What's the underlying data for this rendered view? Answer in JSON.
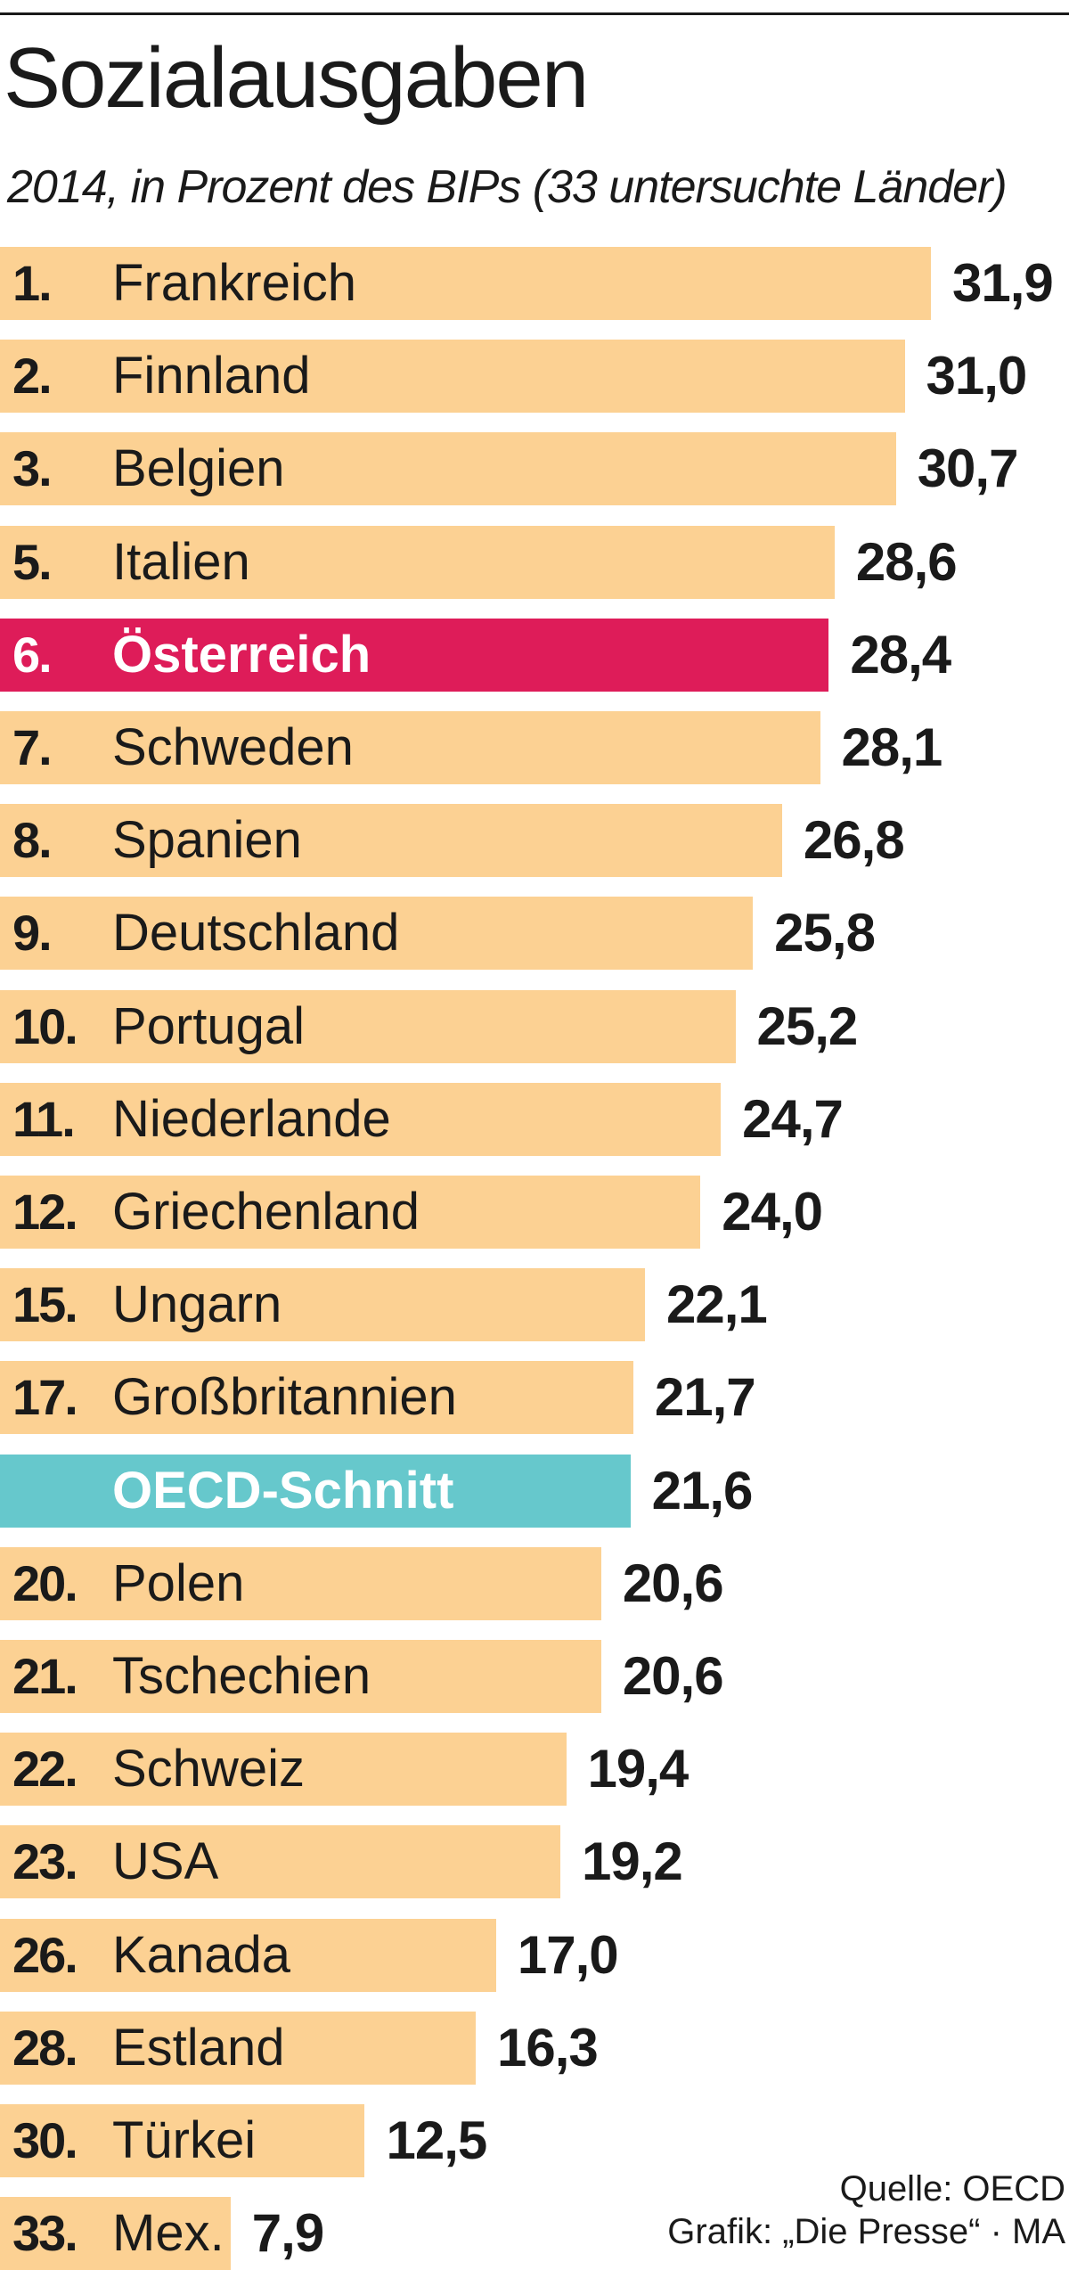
{
  "colors": {
    "bar": "#fcd193",
    "highlight": "#de1c59",
    "average": "#66c8cc",
    "text": "#1a1a1a"
  },
  "chart_data": {
    "type": "bar",
    "orientation": "horizontal",
    "title": "Sozialausgaben",
    "subtitle": "2014, in Prozent des BIPs (33 untersuchte Länder)",
    "xlim": [
      0,
      33.5
    ],
    "grid": false,
    "rows": [
      {
        "rank": "1.",
        "country": "Frankreich",
        "value": 31.9,
        "label": "31,9",
        "style": "normal"
      },
      {
        "rank": "2.",
        "country": "Finnland",
        "value": 31.0,
        "label": "31,0",
        "style": "normal"
      },
      {
        "rank": "3.",
        "country": "Belgien",
        "value": 30.7,
        "label": "30,7",
        "style": "normal"
      },
      {
        "rank": "5.",
        "country": "Italien",
        "value": 28.6,
        "label": "28,6",
        "style": "normal"
      },
      {
        "rank": "6.",
        "country": "Österreich",
        "value": 28.4,
        "label": "28,4",
        "style": "highlight"
      },
      {
        "rank": "7.",
        "country": "Schweden",
        "value": 28.1,
        "label": "28,1",
        "style": "normal"
      },
      {
        "rank": "8.",
        "country": "Spanien",
        "value": 26.8,
        "label": "26,8",
        "style": "normal"
      },
      {
        "rank": "9.",
        "country": "Deutschland",
        "value": 25.8,
        "label": "25,8",
        "style": "normal"
      },
      {
        "rank": "10.",
        "country": "Portugal",
        "value": 25.2,
        "label": "25,2",
        "style": "normal"
      },
      {
        "rank": "11.",
        "country": "Niederlande",
        "value": 24.7,
        "label": "24,7",
        "style": "normal"
      },
      {
        "rank": "12.",
        "country": "Griechenland",
        "value": 24.0,
        "label": "24,0",
        "style": "normal"
      },
      {
        "rank": "15.",
        "country": "Ungarn",
        "value": 22.1,
        "label": "22,1",
        "style": "normal"
      },
      {
        "rank": "17.",
        "country": "Großbritannien",
        "value": 21.7,
        "label": "21,7",
        "style": "normal"
      },
      {
        "rank": "",
        "country": "OECD-Schnitt",
        "value": 21.6,
        "label": "21,6",
        "style": "average"
      },
      {
        "rank": "20.",
        "country": "Polen",
        "value": 20.6,
        "label": "20,6",
        "style": "normal"
      },
      {
        "rank": "21.",
        "country": "Tschechien",
        "value": 20.6,
        "label": "20,6",
        "style": "normal"
      },
      {
        "rank": "22.",
        "country": "Schweiz",
        "value": 19.4,
        "label": "19,4",
        "style": "normal"
      },
      {
        "rank": "23.",
        "country": "USA",
        "value": 19.2,
        "label": "19,2",
        "style": "normal"
      },
      {
        "rank": "26.",
        "country": "Kanada",
        "value": 17.0,
        "label": "17,0",
        "style": "normal"
      },
      {
        "rank": "28.",
        "country": "Estland",
        "value": 16.3,
        "label": "16,3",
        "style": "normal"
      },
      {
        "rank": "30.",
        "country": "Türkei",
        "value": 12.5,
        "label": "12,5",
        "style": "normal"
      },
      {
        "rank": "33.",
        "country": "Mex.",
        "value": 7.9,
        "label": "7,9",
        "style": "normal"
      }
    ]
  },
  "footer": {
    "source": "Quelle: OECD",
    "credit": "Grafik: „Die Presse“ · MA"
  }
}
